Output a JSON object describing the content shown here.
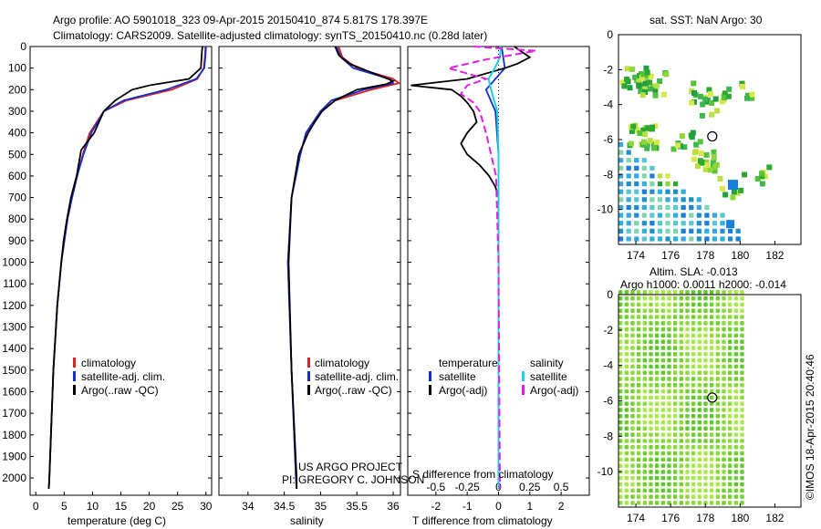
{
  "header": {
    "line1": "Argo profile: AO 5901018_323 09-Apr-2015 20150410_874 5.817S 178.397E",
    "line2": "Climatology: CARS2009. Satellite-adjusted climatology: synTS_20150410.nc (0.28d later)"
  },
  "colors": {
    "clim": "#e02020",
    "sat": "#1030d0",
    "argo": "#000000",
    "sal_sat": "#20d0e0",
    "sal_argo": "#e020e0"
  },
  "chart_data": [
    {
      "type": "line",
      "name": "temperature",
      "xlabel": "temperature (deg C)",
      "ylabel": "",
      "xlim": [
        -1,
        31
      ],
      "ylim": [
        2080,
        0
      ],
      "xticks": [
        0,
        5,
        10,
        15,
        20,
        25,
        30
      ],
      "yticks": [
        0,
        100,
        200,
        300,
        400,
        500,
        600,
        700,
        800,
        900,
        1000,
        1100,
        1200,
        1300,
        1400,
        1500,
        1600,
        1700,
        1800,
        1900,
        2000
      ],
      "legend": [
        "climatology",
        "satellite-adj. clim.",
        "Argo(..raw -QC)"
      ],
      "series": [
        {
          "name": "climatology",
          "depth": [
            0,
            50,
            100,
            150,
            200,
            250,
            300,
            400,
            500,
            600,
            700,
            800,
            1000,
            1200,
            1500,
            2000,
            2050
          ],
          "values": [
            29.9,
            29.8,
            29.6,
            28.5,
            24,
            16,
            12,
            9.5,
            8.3,
            7.3,
            6.4,
            5.6,
            4.5,
            3.8,
            3.1,
            2.4,
            2.3
          ]
        },
        {
          "name": "satellite",
          "depth": [
            0,
            50,
            100,
            150,
            200,
            250,
            300,
            400,
            500,
            600,
            700,
            800,
            1000,
            1200,
            1500,
            2000,
            2050
          ],
          "values": [
            30,
            29.9,
            29.7,
            28.3,
            23,
            15.5,
            12,
            9.8,
            8.4,
            7.3,
            6.4,
            5.6,
            4.5,
            3.8,
            3.1,
            2.4,
            2.3
          ]
        },
        {
          "name": "argo",
          "depth": [
            0,
            20,
            60,
            100,
            150,
            180,
            200,
            250,
            300,
            400,
            480,
            600,
            700,
            800,
            900,
            1000,
            1200,
            1500,
            2000,
            2050
          ],
          "values": [
            29.4,
            29.3,
            29.2,
            29.1,
            27,
            20,
            17,
            14,
            12,
            10.3,
            8,
            7.2,
            6.2,
            5.5,
            4.9,
            4.5,
            3.8,
            3.1,
            2.4,
            2.3
          ]
        }
      ]
    },
    {
      "type": "line",
      "name": "salinity",
      "xlabel": "salinity",
      "xlim": [
        33.6,
        36.1
      ],
      "ylim": [
        2080,
        0
      ],
      "xticks": [
        34,
        34.5,
        35,
        35.5,
        36
      ],
      "legend": [
        "climatology",
        "satellite-adj. clim.",
        "Argo(..raw -QC)"
      ],
      "series": [
        {
          "name": "climatology",
          "depth": [
            0,
            50,
            100,
            150,
            170,
            200,
            250,
            300,
            400,
            500,
            700,
            1000,
            1500,
            2000,
            2050
          ],
          "values": [
            35.25,
            35.3,
            35.5,
            36,
            36.08,
            35.7,
            35.2,
            35,
            34.8,
            34.72,
            34.6,
            34.55,
            34.6,
            34.66,
            34.67
          ]
        },
        {
          "name": "satellite",
          "depth": [
            0,
            50,
            100,
            150,
            170,
            200,
            250,
            300,
            400,
            500,
            700,
            1000,
            1500,
            2000,
            2050
          ],
          "values": [
            35.22,
            35.28,
            35.45,
            35.95,
            36,
            35.6,
            35.15,
            35,
            34.8,
            34.72,
            34.6,
            34.55,
            34.6,
            34.66,
            34.67
          ]
        },
        {
          "name": "argo",
          "depth": [
            0,
            40,
            80,
            120,
            160,
            175,
            200,
            250,
            300,
            350,
            400,
            500,
            700,
            1000,
            1500,
            2000,
            2050
          ],
          "values": [
            35.2,
            35.25,
            35.4,
            35.7,
            36,
            35.9,
            35.5,
            35.2,
            35.02,
            34.92,
            34.83,
            34.7,
            34.6,
            34.56,
            34.6,
            34.67,
            34.67
          ]
        }
      ]
    },
    {
      "type": "line",
      "name": "differences",
      "xlabel": "T difference from climatology",
      "xlabel_top": "S difference from climatology",
      "xlim": [
        -2.9,
        2.9
      ],
      "ylim": [
        2080,
        0
      ],
      "xticks_t": [
        -2,
        -1,
        0,
        1,
        2
      ],
      "xticks_s": [
        -0.5,
        -0.25,
        0,
        0.25,
        0.5
      ],
      "legend": {
        "temperature_header": "temperature",
        "salinity_header": "salinity",
        "t_sat": "satellite",
        "t_argo": "Argo(-adj)",
        "s_sat": "satellite",
        "s_argo": "Argo(-adj)"
      },
      "series": [
        {
          "name": "temperature-satellite",
          "depth": [
            0,
            100,
            200,
            300,
            500,
            700,
            1000,
            2000,
            2050
          ],
          "values": [
            0.1,
            0.2,
            -0.4,
            -0.1,
            0,
            0,
            0,
            0,
            0
          ]
        },
        {
          "name": "temperature-argo",
          "depth": [
            0,
            30,
            50,
            80,
            100,
            150,
            180,
            200,
            230,
            260,
            300,
            350,
            400,
            450,
            500,
            550,
            600,
            650,
            700,
            800,
            1000,
            1500,
            2000,
            2050
          ],
          "values": [
            0.5,
            0.8,
            1.0,
            0.6,
            0.2,
            -1.0,
            -2.8,
            -1.5,
            -1.2,
            -1.0,
            -0.8,
            -0.7,
            -1.0,
            -1.2,
            -1.0,
            -0.6,
            -0.3,
            -0.1,
            0,
            0,
            0,
            0,
            0,
            0
          ]
        },
        {
          "name": "salinity-satellite",
          "depth": [
            0,
            50,
            100,
            150,
            200,
            300,
            500,
            1000,
            2000,
            2050
          ],
          "values": [
            0.02,
            0.01,
            -0.03,
            -0.08,
            -0.06,
            -0.01,
            0,
            0,
            0,
            0
          ]
        },
        {
          "name": "salinity-argo",
          "depth": [
            0,
            20,
            60,
            100,
            150,
            180,
            220,
            260,
            300,
            400,
            600,
            1000,
            2000,
            2050
          ],
          "values": [
            -0.2,
            0.3,
            -0.1,
            -0.4,
            -0.1,
            -0.25,
            -0.3,
            -0.2,
            -0.15,
            -0.1,
            -0.02,
            0,
            0.01,
            0.01
          ]
        }
      ]
    },
    {
      "type": "heatmap",
      "name": "sat-sst-map",
      "title": "sat. SST: NaN Argo: 30",
      "xlim": [
        173,
        183.5
      ],
      "ylim": [
        -12,
        0
      ],
      "xticks": [
        174,
        176,
        178,
        180,
        182
      ],
      "yticks": [
        0,
        -2,
        -4,
        -6,
        -8,
        -10
      ],
      "argo_position": {
        "lon": 178.397,
        "lat": -5.817
      }
    },
    {
      "type": "heatmap",
      "name": "altimetry-map",
      "title": "Altim. SLA: -0.013",
      "subtitle": "Argo h1000: 0.0011 h2000: -0.014",
      "xlim": [
        173,
        183.5
      ],
      "ylim": [
        -12,
        0
      ],
      "xticks": [
        174,
        176,
        178,
        180,
        182
      ],
      "yticks": [
        0,
        -2,
        -4,
        -6,
        -8,
        -10
      ],
      "argo_position": {
        "lon": 178.397,
        "lat": -5.817
      }
    }
  ],
  "footer": {
    "project": "US ARGO PROJECT",
    "pi": "PI: GREGORY C. JOHNSON",
    "credit": "©IMOS 18-Apr-2015 20:40:46"
  }
}
